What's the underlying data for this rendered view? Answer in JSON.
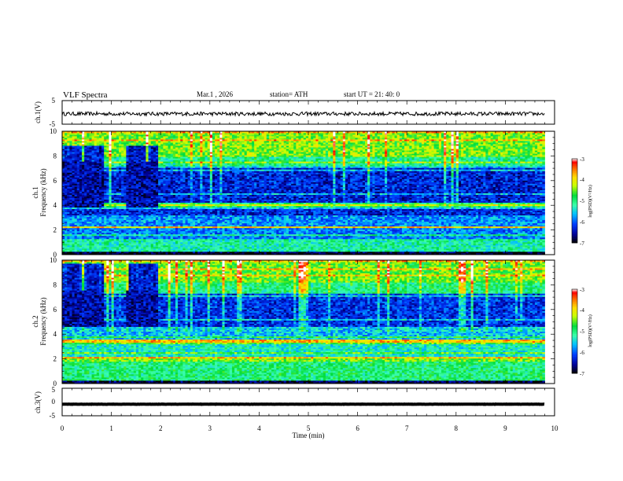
{
  "header": {
    "title": "VLF  Spectra",
    "date": "Mar.1  , 2026",
    "station": "station= ATH",
    "start_ut": "start  UT  =   21: 40: 0"
  },
  "colors": {
    "ch1_trace": "#000000",
    "ch3_trace": "#000000",
    "colormap": [
      "#000000",
      "#0000a0",
      "#0040ff",
      "#00c8ff",
      "#40ffa0",
      "#00e040",
      "#ffff00",
      "#ff8000",
      "#ff0000",
      "#ffffff"
    ]
  },
  "chart_data": [
    {
      "type": "line",
      "name": "ch1-waveform",
      "ylabel": "ch.1(V)",
      "ylim": [
        -5,
        5
      ],
      "yticks": [
        "5",
        "-5"
      ],
      "baseline": -0.6,
      "noise_amplitude": 0.8
    },
    {
      "type": "heatmap",
      "name": "ch1-spectrogram",
      "ylabel_top": "ch.1",
      "ylabel": "Frequency  (kHz)",
      "ylim": [
        0,
        10
      ],
      "yticks": [
        "0",
        "2",
        "4",
        "6",
        "8",
        "10"
      ],
      "xlim": [
        0,
        10
      ],
      "data_end_min": 9.8,
      "colorbar": {
        "label": "log(PSD)(V²/Hz)",
        "range": [
          -7,
          -3
        ],
        "ticks": [
          "-3",
          "-4",
          "-5",
          "-6",
          "-7"
        ]
      },
      "bands": [
        {
          "f0": 0.0,
          "f1": 0.3,
          "level": 0.02
        },
        {
          "f0": 0.3,
          "f1": 1.3,
          "level": 0.45
        },
        {
          "f0": 1.3,
          "f1": 2.2,
          "level": 0.28
        },
        {
          "f0": 2.2,
          "f1": 2.3,
          "level": 0.78
        },
        {
          "f0": 2.3,
          "f1": 3.2,
          "level": 0.3
        },
        {
          "f0": 3.2,
          "f1": 3.9,
          "level": 0.18
        },
        {
          "f0": 3.9,
          "f1": 4.2,
          "level": 0.52
        },
        {
          "f0": 4.2,
          "f1": 7.2,
          "level": 0.15
        },
        {
          "f0": 7.2,
          "f1": 8.0,
          "level": 0.45
        },
        {
          "f0": 8.0,
          "f1": 10.0,
          "level": 0.6
        }
      ],
      "dark_intervals_min": [
        [
          0.0,
          0.85
        ],
        [
          1.3,
          1.95
        ]
      ],
      "dark_band_khz": [
        3.8,
        8.8
      ]
    },
    {
      "type": "heatmap",
      "name": "ch2-spectrogram",
      "ylabel_top": "ch.2",
      "ylabel": "Frequency  (kHz)",
      "ylim": [
        0,
        10
      ],
      "yticks": [
        "0",
        "2",
        "4",
        "6",
        "8",
        "10"
      ],
      "xlim": [
        0,
        10
      ],
      "data_end_min": 9.8,
      "colorbar": {
        "label": "log(PSD)(V²/Hz)",
        "range": [
          -7,
          -3
        ],
        "ticks": [
          "-3",
          "-4",
          "-5",
          "-6",
          "-7"
        ]
      },
      "bands": [
        {
          "f0": 0.0,
          "f1": 0.25,
          "level": 0.05
        },
        {
          "f0": 0.25,
          "f1": 1.8,
          "level": 0.5
        },
        {
          "f0": 1.8,
          "f1": 2.2,
          "level": 0.62
        },
        {
          "f0": 2.2,
          "f1": 3.3,
          "level": 0.42
        },
        {
          "f0": 3.3,
          "f1": 3.6,
          "level": 0.8
        },
        {
          "f0": 3.6,
          "f1": 4.6,
          "level": 0.35
        },
        {
          "f0": 4.6,
          "f1": 7.3,
          "level": 0.17
        },
        {
          "f0": 7.3,
          "f1": 8.2,
          "level": 0.47
        },
        {
          "f0": 8.2,
          "f1": 10.0,
          "level": 0.58
        }
      ],
      "dark_intervals_min": [
        [
          0.0,
          0.85
        ],
        [
          1.3,
          1.95
        ]
      ],
      "dark_band_khz": [
        4.6,
        9.8
      ]
    },
    {
      "type": "line",
      "name": "ch3-waveform",
      "ylabel": "ch.3(V)",
      "ylim": [
        -5,
        5
      ],
      "yticks": [
        "5",
        "0",
        "-5"
      ],
      "baseline": -0.8,
      "noise_amplitude": 0.05
    }
  ],
  "xaxis": {
    "label": "Time  (min)",
    "ticks": [
      "0",
      "1",
      "2",
      "3",
      "4",
      "5",
      "6",
      "7",
      "8",
      "9",
      "10"
    ],
    "range": [
      0,
      10
    ]
  }
}
